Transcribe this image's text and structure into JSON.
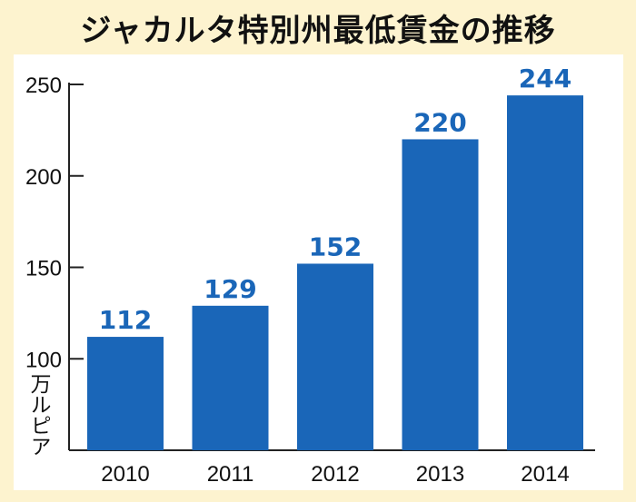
{
  "title": "ジャカルタ特別州最低賃金の推移",
  "chart_data": {
    "type": "bar",
    "title": "ジャカルタ特別州最低賃金の推移",
    "categories": [
      "2010",
      "2011",
      "2012",
      "2013",
      "2014"
    ],
    "values": [
      112,
      129,
      152,
      220,
      244
    ],
    "value_labels": [
      "112",
      "129",
      "152",
      "220",
      "244"
    ],
    "ylabel": "万ルピア",
    "ylim": [
      50,
      250
    ],
    "yticks": [
      50,
      100,
      150,
      200,
      250
    ],
    "ytick_labels": [
      "",
      "100",
      "150",
      "200",
      "250"
    ],
    "grid": false,
    "legend": "none",
    "bar_color": "#1a66b8"
  }
}
